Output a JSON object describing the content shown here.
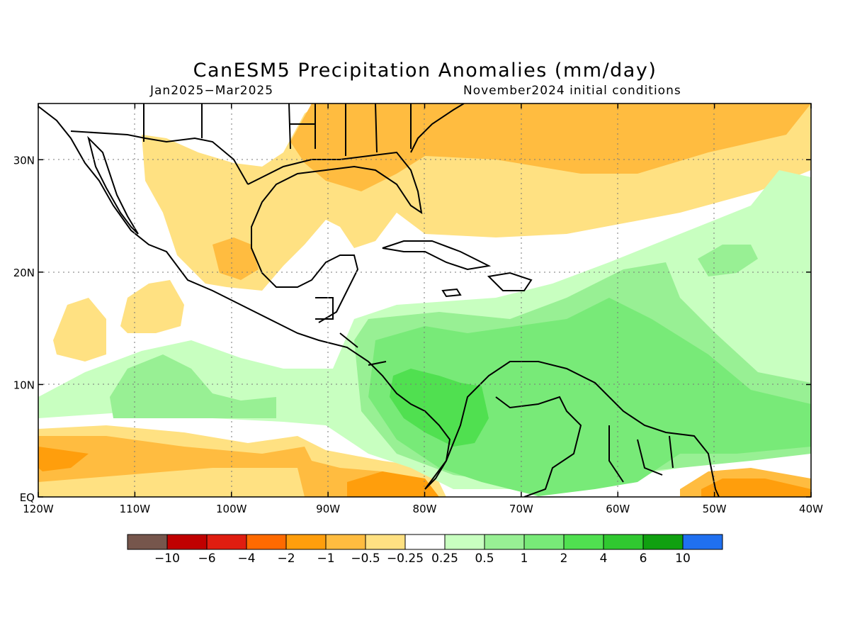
{
  "title": "CanESM5 Precipitation Anomalies (mm/day)",
  "subtitle_left": "Jan2025−Mar2025",
  "subtitle_right": "November2024 initial conditions",
  "map": {
    "lon_range": [
      -120,
      -40
    ],
    "lat_range": [
      0,
      35
    ],
    "lon_ticks": [
      {
        "value": -120,
        "label": "120W"
      },
      {
        "value": -110,
        "label": "110W"
      },
      {
        "value": -100,
        "label": "100W"
      },
      {
        "value": -90,
        "label": "90W"
      },
      {
        "value": -80,
        "label": "80W"
      },
      {
        "value": -70,
        "label": "70W"
      },
      {
        "value": -60,
        "label": "60W"
      },
      {
        "value": -50,
        "label": "50W"
      },
      {
        "value": -40,
        "label": "40W"
      }
    ],
    "lat_ticks": [
      {
        "value": 0,
        "label": "EQ"
      },
      {
        "value": 10,
        "label": "10N"
      },
      {
        "value": 20,
        "label": "20N"
      },
      {
        "value": 30,
        "label": "30N"
      }
    ],
    "gridlines": "dotted"
  },
  "colorbar": {
    "colors": [
      "#76564c",
      "#c00000",
      "#e01d10",
      "#ff6a00",
      "#ff9e0c",
      "#ffbc40",
      "#ffe182",
      "#ffffff",
      "#c8ffc0",
      "#98f094",
      "#78ea78",
      "#50e050",
      "#30c830",
      "#10a010",
      "#2070f0"
    ],
    "labels": [
      "−10",
      "−6",
      "−4",
      "−2",
      "−1",
      "−0.5",
      "−0.25",
      "0.25",
      "0.5",
      "1",
      "2",
      "4",
      "6",
      "10"
    ]
  },
  "fill_colors": {
    "neg_025": "#ffe182",
    "neg_05": "#ffbc40",
    "neg_1": "#ff9e0c",
    "pos_025": "#c8ffc0",
    "pos_05": "#98f094",
    "pos_1": "#78ea78",
    "pos_2": "#50e050"
  }
}
